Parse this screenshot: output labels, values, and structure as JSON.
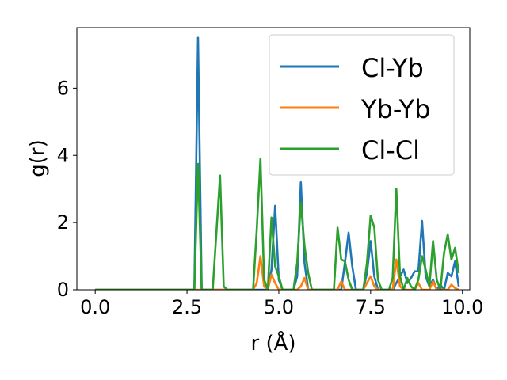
{
  "chart_data": {
    "type": "line",
    "title": "",
    "xlabel": "r (Å)",
    "ylabel": "g(r)",
    "xlim": [
      -0.5,
      10.2
    ],
    "ylim": [
      0,
      7.8
    ],
    "xticks": [
      0.0,
      2.5,
      5.0,
      7.5,
      10.0
    ],
    "xtick_labels": [
      "0.0",
      "2.5",
      "5.0",
      "7.5",
      "10.0"
    ],
    "yticks": [
      0,
      2,
      4,
      6
    ],
    "ytick_labels": [
      "0",
      "2",
      "4",
      "6"
    ],
    "grid": false,
    "legend_position": "top-right",
    "series": [
      {
        "name": "Cl-Yb",
        "color": "#1f77b4",
        "points": [
          [
            0.0,
            0
          ],
          [
            2.6,
            0
          ],
          [
            2.7,
            0
          ],
          [
            2.8,
            7.5
          ],
          [
            2.9,
            0
          ],
          [
            3.0,
            0
          ],
          [
            4.7,
            0
          ],
          [
            4.8,
            0.6
          ],
          [
            4.9,
            2.5
          ],
          [
            5.0,
            0.3
          ],
          [
            5.1,
            0
          ],
          [
            5.4,
            0
          ],
          [
            5.5,
            0.4
          ],
          [
            5.6,
            3.2
          ],
          [
            5.7,
            0.8
          ],
          [
            5.8,
            0
          ],
          [
            6.7,
            0
          ],
          [
            6.8,
            0.8
          ],
          [
            6.9,
            1.7
          ],
          [
            7.0,
            0.7
          ],
          [
            7.1,
            0
          ],
          [
            7.3,
            0
          ],
          [
            7.4,
            0.5
          ],
          [
            7.5,
            1.45
          ],
          [
            7.6,
            0.4
          ],
          [
            7.7,
            0
          ],
          [
            8.1,
            0
          ],
          [
            8.2,
            0.2
          ],
          [
            8.3,
            0.4
          ],
          [
            8.4,
            0.6
          ],
          [
            8.5,
            0.2
          ],
          [
            8.6,
            0.35
          ],
          [
            8.7,
            0.55
          ],
          [
            8.8,
            0.55
          ],
          [
            8.9,
            2.05
          ],
          [
            9.0,
            0.4
          ],
          [
            9.1,
            0.1
          ],
          [
            9.2,
            0.3
          ],
          [
            9.3,
            0
          ],
          [
            9.4,
            0.15
          ],
          [
            9.5,
            0
          ],
          [
            9.6,
            0.5
          ],
          [
            9.7,
            0.4
          ],
          [
            9.8,
            0.85
          ],
          [
            9.9,
            0.1
          ]
        ]
      },
      {
        "name": "Yb-Yb",
        "color": "#ff7f0e",
        "points": [
          [
            0.0,
            0
          ],
          [
            4.3,
            0
          ],
          [
            4.4,
            0.2
          ],
          [
            4.5,
            1.0
          ],
          [
            4.6,
            0.1
          ],
          [
            4.7,
            0
          ],
          [
            4.8,
            0.45
          ],
          [
            4.9,
            0.2
          ],
          [
            5.0,
            0
          ],
          [
            5.5,
            0
          ],
          [
            5.6,
            0.1
          ],
          [
            5.7,
            0.35
          ],
          [
            5.8,
            0
          ],
          [
            6.6,
            0
          ],
          [
            6.7,
            0.25
          ],
          [
            6.8,
            0
          ],
          [
            7.3,
            0
          ],
          [
            7.4,
            0.2
          ],
          [
            7.5,
            0.4
          ],
          [
            7.6,
            0.1
          ],
          [
            7.7,
            0
          ],
          [
            8.1,
            0
          ],
          [
            8.2,
            0.9
          ],
          [
            8.3,
            0.1
          ],
          [
            8.4,
            0
          ],
          [
            8.7,
            0
          ],
          [
            8.8,
            0.2
          ],
          [
            8.9,
            0
          ],
          [
            9.1,
            0
          ],
          [
            9.2,
            0.25
          ],
          [
            9.3,
            0
          ],
          [
            9.6,
            0
          ],
          [
            9.7,
            0.15
          ],
          [
            9.8,
            0.05
          ],
          [
            9.9,
            0
          ]
        ]
      },
      {
        "name": "Cl-Cl",
        "color": "#2ca02c",
        "points": [
          [
            0.0,
            0
          ],
          [
            2.7,
            0
          ],
          [
            2.8,
            3.75
          ],
          [
            2.9,
            0
          ],
          [
            3.0,
            0
          ],
          [
            3.2,
            0
          ],
          [
            3.3,
            1.7
          ],
          [
            3.4,
            3.4
          ],
          [
            3.5,
            0.1
          ],
          [
            3.6,
            0
          ],
          [
            4.3,
            0
          ],
          [
            4.4,
            1.8
          ],
          [
            4.5,
            3.9
          ],
          [
            4.6,
            0.3
          ],
          [
            4.7,
            0
          ],
          [
            4.8,
            2.15
          ],
          [
            4.9,
            0.7
          ],
          [
            5.0,
            0.4
          ],
          [
            5.1,
            0
          ],
          [
            5.4,
            0
          ],
          [
            5.5,
            0.8
          ],
          [
            5.6,
            2.6
          ],
          [
            5.7,
            1.3
          ],
          [
            5.8,
            0.5
          ],
          [
            5.9,
            0
          ],
          [
            6.4,
            0
          ],
          [
            6.5,
            0
          ],
          [
            6.6,
            1.85
          ],
          [
            6.7,
            0.9
          ],
          [
            6.8,
            0.85
          ],
          [
            6.9,
            0.3
          ],
          [
            7.0,
            0
          ],
          [
            7.3,
            0
          ],
          [
            7.4,
            0.8
          ],
          [
            7.5,
            2.2
          ],
          [
            7.6,
            1.85
          ],
          [
            7.7,
            0.3
          ],
          [
            7.8,
            0
          ],
          [
            8.0,
            0
          ],
          [
            8.1,
            0.35
          ],
          [
            8.2,
            3.0
          ],
          [
            8.3,
            0.4
          ],
          [
            8.4,
            0
          ],
          [
            8.5,
            0.35
          ],
          [
            8.6,
            0.1
          ],
          [
            8.7,
            0
          ],
          [
            8.8,
            0.3
          ],
          [
            8.9,
            1.0
          ],
          [
            9.0,
            0.6
          ],
          [
            9.1,
            0.1
          ],
          [
            9.2,
            1.45
          ],
          [
            9.3,
            0.3
          ],
          [
            9.4,
            0
          ],
          [
            9.5,
            1.1
          ],
          [
            9.6,
            1.65
          ],
          [
            9.7,
            0.9
          ],
          [
            9.8,
            1.25
          ],
          [
            9.9,
            0.5
          ]
        ]
      }
    ]
  }
}
